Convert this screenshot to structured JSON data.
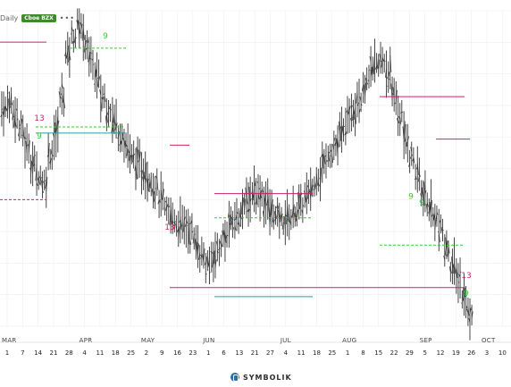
{
  "header": {
    "timeframe": "Daily",
    "source_badge": "Cboe BZX",
    "menu_glyph": "•••"
  },
  "branding": {
    "name": "SYMBOLIK"
  },
  "colors": {
    "bar": "#333333",
    "setup_buy": "#33cc33",
    "setup_sell": "#cc2266",
    "countdown_buy": "#33cc33",
    "countdown_sell": "#cc2266",
    "tdst_sell": "#cc2266",
    "tdst_buy": "#33cc33",
    "support_line": "#33aa33",
    "teal_line": "#3399aa",
    "grid": "#eeeeee"
  },
  "chart_data": {
    "type": "ohlc",
    "title": "",
    "xlabel": "",
    "ylabel": "",
    "x_months": [
      "MAR",
      "APR",
      "MAY",
      "JUN",
      "JUL",
      "AUG",
      "SEP",
      "OCT"
    ],
    "x_ticks": [
      "1",
      "7",
      "14",
      "21",
      "28",
      "4",
      "11",
      "18",
      "25",
      "2",
      "9",
      "16",
      "23",
      "1",
      "6",
      "13",
      "21",
      "27",
      "4",
      "11",
      "18",
      "25",
      "1",
      "8",
      "15",
      "22",
      "29",
      "5",
      "12",
      "19",
      "26",
      "3",
      "10"
    ],
    "price_path": [
      70,
      72,
      68,
      63,
      58,
      52,
      48,
      46,
      55,
      62,
      74,
      88,
      94,
      98,
      92,
      86,
      80,
      74,
      70,
      66,
      62,
      58,
      54,
      52,
      50,
      47,
      44,
      40,
      36,
      34,
      32,
      31,
      30,
      26,
      22,
      18,
      21,
      24,
      28,
      32,
      34,
      37,
      40,
      43,
      42,
      39,
      36,
      34,
      33,
      34,
      36,
      38,
      41,
      44,
      48,
      52,
      56,
      58,
      62,
      66,
      70,
      74,
      78,
      82,
      84,
      86,
      82,
      74,
      68,
      60,
      54,
      48,
      42,
      38,
      34,
      30,
      24,
      18,
      14,
      8,
      2
    ],
    "levels": [
      {
        "type": "tdst_sell",
        "value": 92,
        "segment": "Mar"
      },
      {
        "type": "tdst_buy",
        "value": 64,
        "segment": "Mar-Apr"
      },
      {
        "type": "teal",
        "value": 62,
        "segment": "Mar-Apr"
      },
      {
        "type": "tdst_buy",
        "value": 90,
        "segment": "Apr"
      },
      {
        "type": "sell_dash",
        "value": 40,
        "segment": "Mar"
      },
      {
        "type": "tdst_sell",
        "value": 58,
        "segment": "May"
      },
      {
        "type": "tdst_sell",
        "value": 42,
        "segment": "Jun-Jul"
      },
      {
        "type": "tdst_buy",
        "value": 34,
        "segment": "Jun-Jul"
      },
      {
        "type": "tdst_sell",
        "value": 11,
        "segment": "May-Sep"
      },
      {
        "type": "teal",
        "value": 8,
        "segment": "Jun-Jul"
      },
      {
        "type": "tdst_sell",
        "value": 74,
        "segment": "Aug-Sep"
      },
      {
        "type": "tdst_buy",
        "value": 25,
        "segment": "Aug-Sep"
      },
      {
        "type": "tdst_sell",
        "value": 60,
        "segment": "Sep"
      }
    ],
    "annotations": [
      {
        "text": "9",
        "kind": "setup_buy",
        "at": "Mar-14"
      },
      {
        "text": "13",
        "kind": "countdown_sell",
        "at": "Mar-14"
      },
      {
        "text": "9",
        "kind": "setup_buy",
        "at": "Apr-11"
      },
      {
        "text": "13",
        "kind": "countdown_sell",
        "at": "May-16"
      },
      {
        "text": "9",
        "kind": "setup_buy",
        "at": "Aug-29"
      },
      {
        "text": "9",
        "kind": "setup_buy",
        "at": "Sep-12"
      },
      {
        "text": "13",
        "kind": "countdown_sell",
        "at": "Sep-26"
      },
      {
        "text": "9",
        "kind": "setup_buy",
        "at": "Sep-26"
      }
    ]
  }
}
